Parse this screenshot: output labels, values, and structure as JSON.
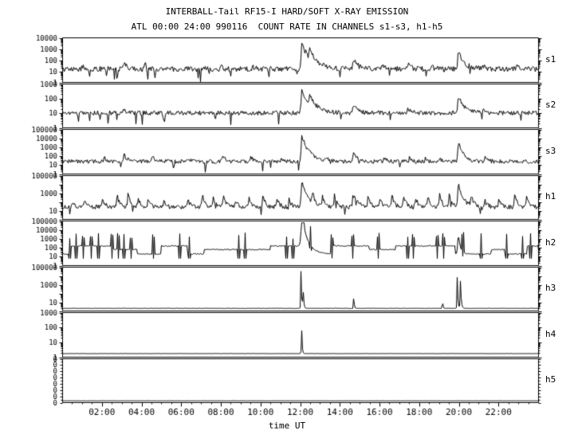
{
  "title": "INTERBALL-Tail RF15-I HARD/SOFT X-RAY EMISSION",
  "subtitle": "ATL 00:00 24:00 990116  COUNT RATE IN CHANNELS s1-s3, h1-h5",
  "xlabel": "time UT",
  "chart_data": {
    "type": "line",
    "title": "INTERBALL-Tail RF15-I HARD/SOFT X-RAY EMISSION",
    "subtitle": "ATL 00:00 24:00 990116  COUNT RATE IN CHANNELS s1-s3, h1-h5",
    "xlabel": "time UT",
    "x_range_hours": [
      0,
      24
    ],
    "grid": false,
    "legend": "none",
    "colors": {
      "trace": "#000000",
      "bg": "#ffffff"
    },
    "x_ticks": [
      {
        "h": 2,
        "label": "02:00"
      },
      {
        "h": 4,
        "label": "04:00"
      },
      {
        "h": 6,
        "label": "06:00"
      },
      {
        "h": 8,
        "label": "08:00"
      },
      {
        "h": 10,
        "label": "10:00"
      },
      {
        "h": 12,
        "label": "12:00"
      },
      {
        "h": 14,
        "label": "14:00"
      },
      {
        "h": 16,
        "label": "16:00"
      },
      {
        "h": 18,
        "label": "18:00"
      },
      {
        "h": 20,
        "label": "20:00"
      },
      {
        "h": 22,
        "label": "22:00"
      }
    ],
    "panels": [
      {
        "id": "s1",
        "label": "s1",
        "scale": "log",
        "decades": 4,
        "ylabels": [
          [
            0,
            "10000"
          ],
          [
            0.25,
            "1000"
          ],
          [
            0.5,
            "100"
          ],
          [
            0.75,
            "10"
          ],
          [
            1,
            "1"
          ]
        ],
        "base": 0.3,
        "noise": 0.06,
        "dropouts": [
          1.35,
          2.2,
          2.75,
          4.3,
          4.65,
          6.95,
          10.4
        ],
        "spikes": [
          {
            "t": 1.0,
            "h": 0.08,
            "d": 0.1
          },
          {
            "t": 3.05,
            "h": 0.14,
            "d": 0.2
          },
          {
            "t": 4.15,
            "h": 0.12,
            "d": 0.15
          },
          {
            "t": 8.0,
            "h": 0.08,
            "d": 0.1
          },
          {
            "t": 9.6,
            "h": 0.08,
            "d": 0.1
          },
          {
            "t": 12.05,
            "h": 0.6,
            "d": 0.45
          },
          {
            "t": 12.45,
            "h": 0.22,
            "d": 0.3
          },
          {
            "t": 14.65,
            "h": 0.22,
            "d": 0.25
          },
          {
            "t": 16.1,
            "h": 0.08,
            "d": 0.1
          },
          {
            "t": 17.4,
            "h": 0.12,
            "d": 0.15
          },
          {
            "t": 18.6,
            "h": 0.08,
            "d": 0.1
          },
          {
            "t": 19.95,
            "h": 0.42,
            "d": 0.3
          },
          {
            "t": 21.2,
            "h": 0.08,
            "d": 0.12
          },
          {
            "t": 22.9,
            "h": 0.06,
            "d": 0.1
          }
        ]
      },
      {
        "id": "s2",
        "label": "s2",
        "scale": "log",
        "decades": 3,
        "ylabels": [
          [
            0,
            "1000"
          ],
          [
            0.333,
            "100"
          ],
          [
            0.667,
            "10"
          ],
          [
            1,
            "1"
          ]
        ],
        "base": 0.34,
        "noise": 0.05,
        "dropouts": [
          0.8,
          2.3,
          5.1,
          7.7,
          10.9
        ],
        "spikes": [
          {
            "t": 3.05,
            "h": 0.1,
            "d": 0.15
          },
          {
            "t": 12.05,
            "h": 0.55,
            "d": 0.45
          },
          {
            "t": 12.45,
            "h": 0.2,
            "d": 0.3
          },
          {
            "t": 14.65,
            "h": 0.18,
            "d": 0.25
          },
          {
            "t": 17.4,
            "h": 0.1,
            "d": 0.15
          },
          {
            "t": 19.95,
            "h": 0.4,
            "d": 0.3
          },
          {
            "t": 21.2,
            "h": 0.07,
            "d": 0.12
          }
        ]
      },
      {
        "id": "s3",
        "label": "s3",
        "scale": "log",
        "decades": 5,
        "ylabels": [
          [
            0,
            "100000"
          ],
          [
            0.2,
            "10000"
          ],
          [
            0.4,
            "1000"
          ],
          [
            0.6,
            "100"
          ],
          [
            0.8,
            "10"
          ],
          [
            1,
            "1"
          ]
        ],
        "base": 0.28,
        "noise": 0.045,
        "dropouts": [
          5.6,
          7.2
        ],
        "spikes": [
          {
            "t": 2.1,
            "h": 0.1,
            "d": 0.12
          },
          {
            "t": 3.1,
            "h": 0.16,
            "d": 0.15
          },
          {
            "t": 4.5,
            "h": 0.13,
            "d": 0.15
          },
          {
            "t": 6.3,
            "h": 0.08,
            "d": 0.1
          },
          {
            "t": 8.05,
            "h": 0.14,
            "d": 0.15
          },
          {
            "t": 9.5,
            "h": 0.12,
            "d": 0.12
          },
          {
            "t": 11.0,
            "h": 0.1,
            "d": 0.12
          },
          {
            "t": 12.05,
            "h": 0.6,
            "d": 0.4
          },
          {
            "t": 13.3,
            "h": 0.1,
            "d": 0.12
          },
          {
            "t": 14.65,
            "h": 0.25,
            "d": 0.2
          },
          {
            "t": 16.2,
            "h": 0.1,
            "d": 0.12
          },
          {
            "t": 17.5,
            "h": 0.12,
            "d": 0.12
          },
          {
            "t": 18.3,
            "h": 0.08,
            "d": 0.1
          },
          {
            "t": 19.0,
            "h": 0.1,
            "d": 0.12
          },
          {
            "t": 19.95,
            "h": 0.5,
            "d": 0.25
          },
          {
            "t": 21.3,
            "h": 0.1,
            "d": 0.12
          },
          {
            "t": 22.6,
            "h": 0.08,
            "d": 0.1
          }
        ]
      },
      {
        "id": "h1",
        "label": "h1",
        "scale": "log",
        "decades": 5,
        "ylabels": [
          [
            0,
            "100000"
          ],
          [
            0.4,
            "1000"
          ],
          [
            0.8,
            "10"
          ]
        ],
        "base": 0.28,
        "noise": 0.05,
        "dropouts": [],
        "spikes": [
          {
            "t": 0.5,
            "h": 0.15
          },
          {
            "t": 1.1,
            "h": 0.2
          },
          {
            "t": 2.0,
            "h": 0.22
          },
          {
            "t": 2.75,
            "h": 0.28
          },
          {
            "t": 3.3,
            "h": 0.33
          },
          {
            "t": 3.8,
            "h": 0.24
          },
          {
            "t": 4.3,
            "h": 0.2
          },
          {
            "t": 5.1,
            "h": 0.18
          },
          {
            "t": 6.3,
            "h": 0.2
          },
          {
            "t": 7.05,
            "h": 0.28
          },
          {
            "t": 7.6,
            "h": 0.24
          },
          {
            "t": 8.1,
            "h": 0.3
          },
          {
            "t": 8.7,
            "h": 0.2
          },
          {
            "t": 9.4,
            "h": 0.24
          },
          {
            "t": 10.1,
            "h": 0.3
          },
          {
            "t": 10.8,
            "h": 0.24
          },
          {
            "t": 11.4,
            "h": 0.2
          },
          {
            "t": 12.05,
            "h": 0.62,
            "d": 0.3
          },
          {
            "t": 12.6,
            "h": 0.28
          },
          {
            "t": 13.1,
            "h": 0.24
          },
          {
            "t": 13.7,
            "h": 0.28
          },
          {
            "t": 14.65,
            "h": 0.42,
            "d": 0.2
          },
          {
            "t": 15.4,
            "h": 0.24
          },
          {
            "t": 16.0,
            "h": 0.2
          },
          {
            "t": 16.6,
            "h": 0.32
          },
          {
            "t": 17.2,
            "h": 0.28
          },
          {
            "t": 17.8,
            "h": 0.24
          },
          {
            "t": 18.4,
            "h": 0.28
          },
          {
            "t": 19.0,
            "h": 0.33
          },
          {
            "t": 19.5,
            "h": 0.3
          },
          {
            "t": 19.95,
            "h": 0.55,
            "d": 0.25
          },
          {
            "t": 20.6,
            "h": 0.3
          },
          {
            "t": 21.3,
            "h": 0.24
          },
          {
            "t": 22.0,
            "h": 0.2
          },
          {
            "t": 22.8,
            "h": 0.33
          },
          {
            "t": 23.4,
            "h": 0.3
          }
        ]
      },
      {
        "id": "h2",
        "label": "h2",
        "scale": "log",
        "decades": 5,
        "ylabels": [
          [
            0,
            "100000"
          ],
          [
            0.2,
            "10000"
          ],
          [
            0.4,
            "1000"
          ],
          [
            0.6,
            "100"
          ],
          [
            0.8,
            "10"
          ],
          [
            1,
            "1"
          ]
        ],
        "base": 0.36,
        "noise": 0.012,
        "telegraph": {
          "levels": [
            0.26,
            0.36,
            0.44
          ],
          "seed": 7
        },
        "bursts": [
          0.35,
          0.7,
          1.05,
          1.45,
          1.8,
          2.5,
          2.8,
          3.1,
          3.45,
          4.6,
          5.9,
          6.4,
          8.9,
          9.2,
          11.3,
          11.6,
          12.5,
          13.6,
          14.65,
          15.9,
          17.4,
          17.7,
          18.9,
          19.2,
          20.2,
          21.1,
          22.4,
          23.2,
          23.6
        ],
        "spikes": [
          {
            "t": 12.05,
            "h": 0.9,
            "d": 0.3
          },
          {
            "t": 19.95,
            "h": 0.5,
            "d": 0.1
          }
        ]
      },
      {
        "id": "h3",
        "label": "h3",
        "scale": "log",
        "decades": 5,
        "ylabels": [
          [
            0,
            "100000"
          ],
          [
            0.4,
            "1000"
          ],
          [
            0.8,
            "10"
          ]
        ],
        "base": 0.06,
        "noise": 0.004,
        "dropouts": [],
        "spikes": [
          {
            "t": 12.02,
            "h": 0.85,
            "r": 0.01,
            "d": 0.03
          },
          {
            "t": 12.12,
            "h": 0.7,
            "r": 0.01,
            "d": 0.03
          },
          {
            "t": 14.68,
            "h": 0.5,
            "r": 0.008,
            "d": 0.02
          },
          {
            "t": 19.15,
            "h": 0.4,
            "r": 0.008,
            "d": 0.02
          },
          {
            "t": 19.9,
            "h": 0.75,
            "r": 0.01,
            "d": 0.03
          },
          {
            "t": 20.05,
            "h": 0.8,
            "r": 0.01,
            "d": 0.04
          }
        ]
      },
      {
        "id": "h4",
        "label": "h4",
        "scale": "log",
        "decades": 3,
        "ylabels": [
          [
            0,
            "1000"
          ],
          [
            0.333,
            "100"
          ],
          [
            0.667,
            "10"
          ],
          [
            1,
            "1"
          ]
        ],
        "base": 0.08,
        "noise": 0.003,
        "dropouts": [],
        "spikes": [
          {
            "t": 12.05,
            "h": 0.78,
            "r": 0.01,
            "d": 0.025
          }
        ]
      },
      {
        "id": "h5",
        "label": "h5",
        "scale": "linear",
        "ylabels": [
          [
            0,
            "0"
          ],
          [
            0.143,
            "0"
          ],
          [
            0.286,
            "0"
          ],
          [
            0.429,
            "0"
          ],
          [
            0.571,
            "0"
          ],
          [
            0.714,
            "0"
          ],
          [
            0.857,
            "0"
          ],
          [
            1,
            "0"
          ]
        ],
        "base": 0.04,
        "noise": 0.002,
        "dropouts": [],
        "spikes": []
      }
    ]
  }
}
